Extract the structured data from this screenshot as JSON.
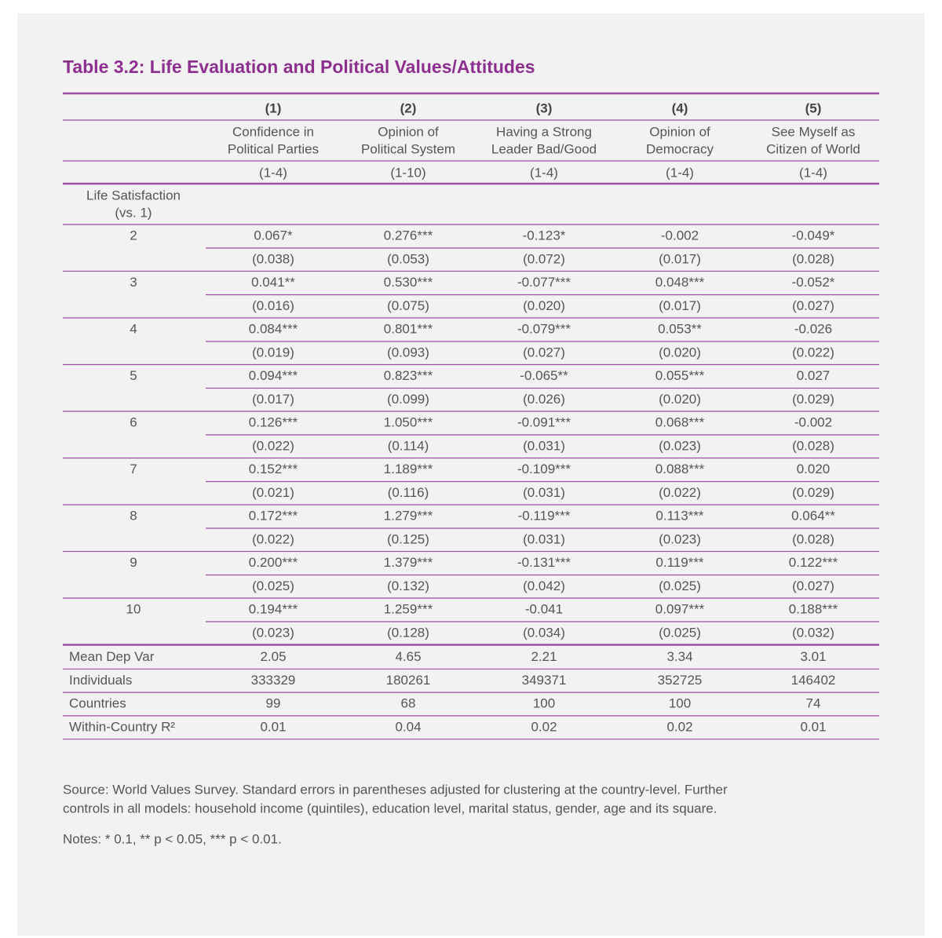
{
  "title": "Table 3.2: Life Evaluation and Political Values/Attitudes",
  "table": {
    "column_numbers": [
      "(1)",
      "(2)",
      "(3)",
      "(4)",
      "(5)"
    ],
    "column_names": [
      [
        "Confidence in",
        "Political Parties"
      ],
      [
        "Opinion of",
        "Political System"
      ],
      [
        "Having a Strong",
        "Leader Bad/Good"
      ],
      [
        "Opinion of",
        "Democracy"
      ],
      [
        "See Myself as",
        "Citizen of World"
      ]
    ],
    "column_ranges": [
      "(1-4)",
      "(1-10)",
      "(1-4)",
      "(1-4)",
      "(1-4)"
    ],
    "group_label": [
      "Life Satisfaction",
      "(vs. 1)"
    ],
    "rows": [
      {
        "label": "2",
        "coefficients": [
          "0.067*",
          "0.276***",
          "-0.123*",
          "-0.002",
          "-0.049*"
        ],
        "standard_errors": [
          "(0.038)",
          "(0.053)",
          "(0.072)",
          "(0.017)",
          "(0.028)"
        ]
      },
      {
        "label": "3",
        "coefficients": [
          "0.041**",
          "0.530***",
          "-0.077***",
          "0.048***",
          "-0.052*"
        ],
        "standard_errors": [
          "(0.016)",
          "(0.075)",
          "(0.020)",
          "(0.017)",
          "(0.027)"
        ]
      },
      {
        "label": "4",
        "coefficients": [
          "0.084***",
          "0.801***",
          "-0.079***",
          "0.053**",
          "-0.026"
        ],
        "standard_errors": [
          "(0.019)",
          "(0.093)",
          "(0.027)",
          "(0.020)",
          "(0.022)"
        ]
      },
      {
        "label": "5",
        "coefficients": [
          "0.094***",
          "0.823***",
          "-0.065**",
          "0.055***",
          "0.027"
        ],
        "standard_errors": [
          "(0.017)",
          "(0.099)",
          "(0.026)",
          "(0.020)",
          "(0.029)"
        ]
      },
      {
        "label": "6",
        "coefficients": [
          "0.126***",
          "1.050***",
          "-0.091***",
          "0.068***",
          "-0.002"
        ],
        "standard_errors": [
          "(0.022)",
          "(0.114)",
          "(0.031)",
          "(0.023)",
          "(0.028)"
        ]
      },
      {
        "label": "7",
        "coefficients": [
          "0.152***",
          "1.189***",
          "-0.109***",
          "0.088***",
          "0.020"
        ],
        "standard_errors": [
          "(0.021)",
          "(0.116)",
          "(0.031)",
          "(0.022)",
          "(0.029)"
        ]
      },
      {
        "label": "8",
        "coefficients": [
          "0.172***",
          "1.279***",
          "-0.119***",
          "0.113***",
          "0.064**"
        ],
        "standard_errors": [
          "(0.022)",
          "(0.125)",
          "(0.031)",
          "(0.023)",
          "(0.028)"
        ]
      },
      {
        "label": "9",
        "coefficients": [
          "0.200***",
          "1.379***",
          "-0.131***",
          "0.119***",
          "0.122***"
        ],
        "standard_errors": [
          "(0.025)",
          "(0.132)",
          "(0.042)",
          "(0.025)",
          "(0.027)"
        ]
      },
      {
        "label": "10",
        "coefficients": [
          "0.194***",
          "1.259***",
          "-0.041",
          "0.097***",
          "0.188***"
        ],
        "standard_errors": [
          "(0.023)",
          "(0.128)",
          "(0.034)",
          "(0.025)",
          "(0.032)"
        ]
      }
    ],
    "stats": [
      {
        "label": "Mean Dep Var",
        "values": [
          "2.05",
          "4.65",
          "2.21",
          "3.34",
          "3.01"
        ]
      },
      {
        "label": "Individuals",
        "values": [
          "333329",
          "180261",
          "349371",
          "352725",
          "146402"
        ]
      },
      {
        "label": "Countries",
        "values": [
          "99",
          "68",
          "100",
          "100",
          "74"
        ]
      },
      {
        "label": "Within-Country R²",
        "values": [
          "0.01",
          "0.04",
          "0.02",
          "0.02",
          "0.01"
        ]
      }
    ]
  },
  "source": [
    "Source: World Values Survey. Standard errors in parentheses adjusted for clustering at the country-level. Further",
    "controls in all models: household income (quintiles), education level, marital status, gender, age and its square."
  ],
  "notes": "Notes: * 0.1, ** p < 0.05, *** p < 0.01."
}
